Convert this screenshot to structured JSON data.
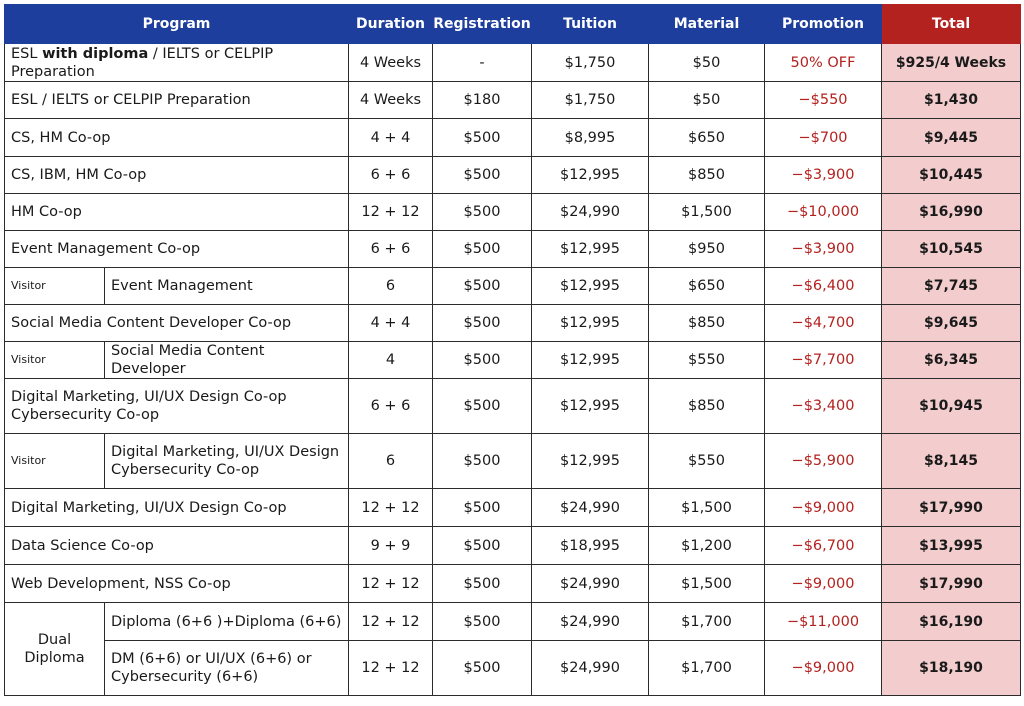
{
  "headers": {
    "program": "Program",
    "duration": "Duration",
    "registration": "Registration",
    "tuition": "Tuition",
    "material": "Material",
    "promotion": "Promotion",
    "total": "Total"
  },
  "rows": [
    {
      "program_pre": "ESL ",
      "program_bold": "with diploma",
      "program_post": " / IELTS or CELPIP Preparation",
      "duration": "4 Weeks",
      "registration": "-",
      "tuition": "$1,750",
      "material": "$50",
      "promotion": "50% OFF",
      "total": "$925/4 Weeks"
    },
    {
      "program": "ESL / IELTS or CELPIP Preparation",
      "duration": "4 Weeks",
      "registration": "$180",
      "tuition": "$1,750",
      "material": "$50",
      "promotion": "−$550",
      "total": "$1,430"
    },
    {
      "program": "CS, HM Co-op",
      "duration": "4 + 4",
      "registration": "$500",
      "tuition": "$8,995",
      "material": "$650",
      "promotion": "−$700",
      "total": "$9,445"
    },
    {
      "program": "CS, IBM, HM Co-op",
      "duration": "6 + 6",
      "registration": "$500",
      "tuition": "$12,995",
      "material": "$850",
      "promotion": "−$3,900",
      "total": "$10,445"
    },
    {
      "program": "HM Co-op",
      "duration": "12 + 12",
      "registration": "$500",
      "tuition": "$24,990",
      "material": "$1,500",
      "promotion": "−$10,000",
      "total": "$16,990"
    },
    {
      "program": "Event Management Co-op",
      "duration": "6 + 6",
      "registration": "$500",
      "tuition": "$12,995",
      "material": "$950",
      "promotion": "−$3,900",
      "total": "$10,545"
    },
    {
      "group": "Visitor",
      "program": "Event Management",
      "duration": "6",
      "registration": "$500",
      "tuition": "$12,995",
      "material": "$650",
      "promotion": "−$6,400",
      "total": "$7,745"
    },
    {
      "program": "Social Media Content Developer Co-op",
      "duration": "4 + 4",
      "registration": "$500",
      "tuition": "$12,995",
      "material": "$850",
      "promotion": "−$4,700",
      "total": "$9,645"
    },
    {
      "group": "Visitor",
      "program": "Social Media Content Developer",
      "duration": "4",
      "registration": "$500",
      "tuition": "$12,995",
      "material": "$550",
      "promotion": "−$7,700",
      "total": "$6,345"
    },
    {
      "program_line1": "Digital Marketing, UI/UX Design Co-op",
      "program_line2": "Cybersecurity Co-op",
      "duration": "6 + 6",
      "registration": "$500",
      "tuition": "$12,995",
      "material": "$850",
      "promotion": "−$3,400",
      "total": "$10,945"
    },
    {
      "group": "Visitor",
      "program_line1": "Digital Marketing, UI/UX Design",
      "program_line2": "Cybersecurity Co-op",
      "duration": "6",
      "registration": "$500",
      "tuition": "$12,995",
      "material": "$550",
      "promotion": "−$5,900",
      "total": "$8,145"
    },
    {
      "program": "Digital Marketing, UI/UX Design Co-op",
      "duration": "12 + 12",
      "registration": "$500",
      "tuition": "$24,990",
      "material": "$1,500",
      "promotion": "−$9,000",
      "total": "$17,990"
    },
    {
      "program": "Data Science Co-op",
      "duration": "9 + 9",
      "registration": "$500",
      "tuition": "$18,995",
      "material": "$1,200",
      "promotion": "−$6,700",
      "total": "$13,995"
    },
    {
      "program": "Web Development, NSS Co-op",
      "duration": "12 + 12",
      "registration": "$500",
      "tuition": "$24,990",
      "material": "$1,500",
      "promotion": "−$9,000",
      "total": "$17,990"
    },
    {
      "group_line1": "Dual",
      "group_line2": "Diploma",
      "program": "Diploma (6+6 )+Diploma (6+6)",
      "duration": "12 + 12",
      "registration": "$500",
      "tuition": "$24,990",
      "material": "$1,700",
      "promotion": "−$11,000",
      "total": "$16,190"
    },
    {
      "program_line1": "DM (6+6) or UI/UX (6+6) or",
      "program_line2": "Cybersecurity (6+6)",
      "duration": "12 + 12",
      "registration": "$500",
      "tuition": "$24,990",
      "material": "$1,700",
      "promotion": "−$9,000",
      "total": "$18,190"
    }
  ],
  "colors": {
    "header_blue": "#1d3e9c",
    "header_total_red": "#b3221f",
    "total_cell_pink": "#f3cdcd",
    "promotion_text_red": "#b3221f"
  }
}
